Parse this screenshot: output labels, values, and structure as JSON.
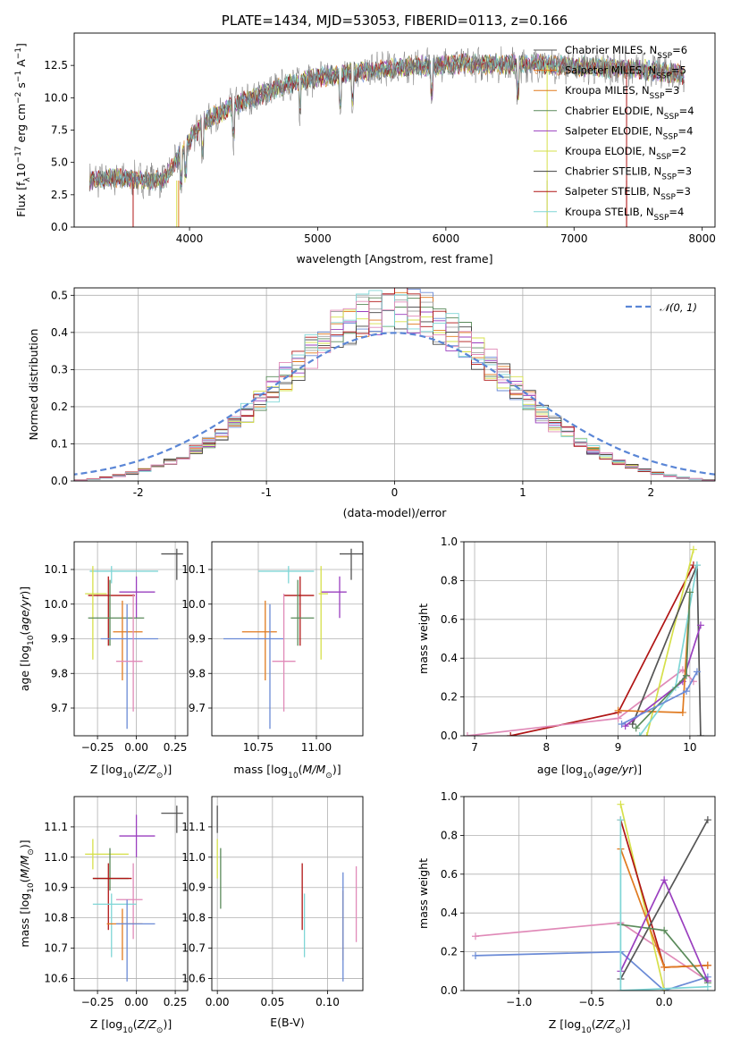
{
  "colors": [
    "#555555",
    "#e07a1f",
    "#a3a3a3",
    "#5a8a5a",
    "#9a3fbf",
    "#d6e04a",
    "#404040",
    "#b01515",
    "#7fd6d6",
    "#6a8ad6",
    "#e08ab8"
  ],
  "chart_data": [
    {
      "id": "spectrum",
      "type": "line",
      "title": "PLATE=1434, MJD=53053, FIBERID=0113, z=0.166",
      "xlabel": "wavelength [Angstrom, rest frame]",
      "ylabel": "Flux [f_λ 10^-17 erg cm^-2 s^-1 A^-1]",
      "xlim": [
        3100,
        8100
      ],
      "ylim": [
        0,
        15
      ],
      "xticks": [
        4000,
        5000,
        6000,
        7000,
        8000
      ],
      "yticks": [
        0.0,
        2.5,
        5.0,
        7.5,
        10.0,
        12.5
      ],
      "grid": false,
      "legend_placement": "top-right",
      "series": [
        {
          "name": "Chabrier MILES, N_SSP=6"
        },
        {
          "name": "Salpeter MILES, N_SSP=5"
        },
        {
          "name": "Kroupa MILES, N_SSP=3"
        },
        {
          "name": "Chabrier ELODIE, N_SSP=4"
        },
        {
          "name": "Salpeter ELODIE, N_SSP=4"
        },
        {
          "name": "Kroupa ELODIE, N_SSP=2"
        },
        {
          "name": "Chabrier STELIB, N_SSP=3"
        },
        {
          "name": "Salpeter STELIB, N_SSP=3"
        },
        {
          "name": "Kroupa STELIB, N_SSP=4"
        }
      ],
      "continuum": {
        "x": [
          3220,
          3400,
          3600,
          3800,
          3950,
          4100,
          4300,
          4500,
          4700,
          4900,
          5100,
          5300,
          5500,
          5700,
          5900,
          6100,
          6300,
          6500,
          6700,
          6900,
          7100,
          7300,
          7500,
          7700,
          7850
        ],
        "y": [
          3.6,
          3.8,
          3.7,
          3.6,
          6.0,
          8.0,
          9.2,
          10.0,
          10.8,
          11.4,
          11.7,
          12.0,
          12.2,
          12.4,
          12.5,
          12.6,
          12.6,
          12.6,
          12.6,
          12.5,
          12.4,
          12.3,
          12.2,
          12.0,
          11.8
        ]
      }
    },
    {
      "id": "residuals",
      "type": "line",
      "xlabel": "(data-model)/error",
      "ylabel": "Normed distribution",
      "xlim": [
        -2.5,
        2.5
      ],
      "ylim": [
        0,
        0.52
      ],
      "xticks": [
        -2,
        -1,
        0,
        1,
        2
      ],
      "yticks": [
        0.0,
        0.1,
        0.2,
        0.3,
        0.4,
        0.5
      ],
      "grid": true,
      "legend_placement": "top-right",
      "reference": {
        "name": "N(0,1)",
        "mu": 0,
        "sigma": 1
      },
      "bin_width": 0.1
    },
    {
      "id": "age-vs-Z",
      "type": "scatter",
      "xlabel": "Z [log10(Z/Z☉)]",
      "ylabel": "age  [log10(age/yr)]",
      "xlim": [
        -0.4,
        0.33
      ],
      "ylim": [
        9.62,
        10.18
      ],
      "xticks": [
        -0.25,
        0.0,
        0.25
      ],
      "xtick_labels": [
        "−0.25",
        "0.00",
        "0.25"
      ],
      "yticks": [
        9.7,
        9.8,
        9.9,
        10.0,
        10.1
      ],
      "grid": true,
      "points": [
        {
          "c": 0,
          "x": 0.26,
          "y": 10.145,
          "xerr": [
            0.26,
            0.26
          ],
          "xr": [
            0.16,
            0.3
          ],
          "yr": [
            10.07,
            10.16
          ]
        },
        {
          "c": 8,
          "x": -0.16,
          "y": 10.095,
          "xr": [
            -0.3,
            0.14
          ],
          "yr": [
            10.06,
            10.11
          ]
        },
        {
          "c": 4,
          "x": 0.0,
          "y": 10.035,
          "xr": [
            -0.11,
            0.12
          ],
          "yr": [
            9.96,
            10.08
          ]
        },
        {
          "c": 7,
          "x": -0.18,
          "y": 10.025,
          "xr": [
            -0.31,
            -0.01
          ],
          "yr": [
            9.88,
            10.08
          ]
        },
        {
          "c": 5,
          "x": -0.28,
          "y": 10.03,
          "xr": [
            -0.33,
            -0.19
          ],
          "yr": [
            9.84,
            10.11
          ]
        },
        {
          "c": 3,
          "x": -0.17,
          "y": 9.96,
          "xr": [
            -0.31,
            0.05
          ],
          "yr": [
            9.88,
            10.07
          ]
        },
        {
          "c": 1,
          "x": -0.09,
          "y": 9.92,
          "xr": [
            -0.15,
            0.04
          ],
          "yr": [
            9.78,
            10.01
          ]
        },
        {
          "c": 9,
          "x": -0.06,
          "y": 9.9,
          "xr": [
            -0.23,
            0.14
          ],
          "yr": [
            9.64,
            10.0
          ]
        },
        {
          "c": 10,
          "x": -0.02,
          "y": 9.835,
          "xr": [
            -0.13,
            0.04
          ],
          "yr": [
            9.69,
            10.03
          ]
        }
      ]
    },
    {
      "id": "age-vs-mass",
      "type": "scatter",
      "xlabel": "mass [log10(M/M☉)]",
      "ylabel": "",
      "xlim": [
        10.55,
        11.2
      ],
      "ylim": [
        9.62,
        10.18
      ],
      "xticks": [
        10.75,
        11.0
      ],
      "xtick_labels": [
        "10.75",
        "11.00"
      ],
      "yticks": [
        9.7,
        9.8,
        9.9,
        10.0,
        10.1
      ],
      "grid": true,
      "points": [
        {
          "c": 0,
          "x": 11.15,
          "y": 10.145,
          "xr": [
            11.1,
            11.2
          ],
          "yr": [
            10.07,
            10.16
          ]
        },
        {
          "c": 8,
          "x": 10.88,
          "y": 10.095,
          "xr": [
            10.75,
            10.99
          ],
          "yr": [
            10.06,
            10.11
          ]
        },
        {
          "c": 4,
          "x": 11.1,
          "y": 10.035,
          "xr": [
            11.02,
            11.13
          ],
          "yr": [
            9.96,
            10.08
          ]
        },
        {
          "c": 7,
          "x": 10.93,
          "y": 10.025,
          "xr": [
            10.86,
            10.99
          ],
          "yr": [
            9.88,
            10.08
          ]
        },
        {
          "c": 5,
          "x": 11.02,
          "y": 10.03,
          "xr": [
            11.01,
            11.05
          ],
          "yr": [
            9.84,
            10.11
          ]
        },
        {
          "c": 3,
          "x": 10.92,
          "y": 9.96,
          "xr": [
            10.89,
            10.99
          ],
          "yr": [
            9.88,
            10.07
          ]
        },
        {
          "c": 1,
          "x": 10.78,
          "y": 9.92,
          "xr": [
            10.68,
            10.83
          ],
          "yr": [
            9.78,
            10.01
          ]
        },
        {
          "c": 9,
          "x": 10.8,
          "y": 9.9,
          "xr": [
            10.6,
            10.86
          ],
          "yr": [
            9.64,
            10.0
          ]
        },
        {
          "c": 10,
          "x": 10.86,
          "y": 9.835,
          "xr": [
            10.81,
            10.91
          ],
          "yr": [
            9.69,
            10.03
          ]
        }
      ]
    },
    {
      "id": "weight-vs-age",
      "type": "line",
      "xlabel": "age  [log10(age/yr)]",
      "ylabel": "mass weight",
      "xlim": [
        6.85,
        10.35
      ],
      "ylim": [
        0,
        1.0
      ],
      "xticks": [
        7,
        8,
        9,
        10
      ],
      "yticks": [
        0.0,
        0.2,
        0.4,
        0.6,
        0.8,
        1.0
      ],
      "grid": true,
      "series": [
        {
          "c": 7,
          "points": [
            [
              7.5,
              0.0
            ],
            [
              9.0,
              0.12
            ],
            [
              10.05,
              0.88
            ]
          ]
        },
        {
          "c": 10,
          "points": [
            [
              6.9,
              0.0
            ],
            [
              9.0,
              0.09
            ],
            [
              9.9,
              0.34
            ],
            [
              10.05,
              0.28
            ]
          ]
        },
        {
          "c": 5,
          "points": [
            [
              9.4,
              0.0
            ],
            [
              10.05,
              0.96
            ]
          ]
        },
        {
          "c": 0,
          "points": [
            [
              9.2,
              0.06
            ],
            [
              10.1,
              0.88
            ],
            [
              10.15,
              0.0
            ]
          ]
        },
        {
          "c": 4,
          "points": [
            [
              9.1,
              0.05
            ],
            [
              9.9,
              0.28
            ],
            [
              10.15,
              0.57
            ]
          ]
        },
        {
          "c": 1,
          "points": [
            [
              9.0,
              0.13
            ],
            [
              9.9,
              0.12
            ],
            [
              10.0,
              0.74
            ]
          ]
        },
        {
          "c": 8,
          "points": [
            [
              9.3,
              0.0
            ],
            [
              9.8,
              0.25
            ],
            [
              10.1,
              0.88
            ]
          ]
        },
        {
          "c": 3,
          "points": [
            [
              9.25,
              0.04
            ],
            [
              9.95,
              0.31
            ],
            [
              10.0,
              0.74
            ]
          ]
        },
        {
          "c": 9,
          "points": [
            [
              9.05,
              0.06
            ],
            [
              9.95,
              0.23
            ],
            [
              10.1,
              0.33
            ]
          ]
        }
      ]
    },
    {
      "id": "mass-vs-Z",
      "type": "scatter",
      "xlabel": "Z [log10(Z/Z☉)]",
      "ylabel": "mass [log10(M/M☉)]",
      "xlim": [
        -0.4,
        0.33
      ],
      "ylim": [
        10.56,
        11.2
      ],
      "xticks": [
        -0.25,
        0.0,
        0.25
      ],
      "xtick_labels": [
        "−0.25",
        "0.00",
        "0.25"
      ],
      "yticks": [
        10.6,
        10.7,
        10.8,
        10.9,
        11.0,
        11.1
      ],
      "grid": true,
      "points": [
        {
          "c": 0,
          "x": 0.26,
          "y": 11.145,
          "xr": [
            0.16,
            0.3
          ],
          "yr": [
            11.08,
            11.17
          ]
        },
        {
          "c": 4,
          "x": 0.0,
          "y": 11.07,
          "xr": [
            -0.11,
            0.12
          ],
          "yr": [
            11.0,
            11.14
          ]
        },
        {
          "c": 5,
          "x": -0.28,
          "y": 11.01,
          "xr": [
            -0.33,
            -0.05
          ],
          "yr": [
            10.96,
            11.06
          ]
        },
        {
          "c": 3,
          "x": -0.17,
          "y": 10.93,
          "xr": [
            -0.28,
            -0.05
          ],
          "yr": [
            10.89,
            11.03
          ]
        },
        {
          "c": 7,
          "x": -0.18,
          "y": 10.93,
          "xr": [
            -0.28,
            -0.03
          ],
          "yr": [
            10.76,
            10.98
          ]
        },
        {
          "c": 10,
          "x": -0.02,
          "y": 10.86,
          "xr": [
            -0.13,
            0.04
          ],
          "yr": [
            10.73,
            10.98
          ]
        },
        {
          "c": 8,
          "x": -0.16,
          "y": 10.845,
          "xr": [
            -0.28,
            0.0
          ],
          "yr": [
            10.67,
            10.88
          ]
        },
        {
          "c": 1,
          "x": -0.09,
          "y": 10.78,
          "xr": [
            -0.19,
            0.04
          ],
          "yr": [
            10.66,
            10.83
          ]
        },
        {
          "c": 9,
          "x": -0.06,
          "y": 10.78,
          "xr": [
            -0.13,
            0.12
          ],
          "yr": [
            10.59,
            10.86
          ]
        }
      ]
    },
    {
      "id": "mass-vs-EBV",
      "type": "scatter",
      "xlabel": "E(B-V)",
      "ylabel": "",
      "xlim": [
        -0.005,
        0.132
      ],
      "ylim": [
        10.56,
        11.2
      ],
      "xticks": [
        0.0,
        0.05,
        0.1
      ],
      "xtick_labels": [
        "0.00",
        "0.05",
        "0.10"
      ],
      "yticks": [
        10.6,
        10.7,
        10.8,
        10.9,
        11.0,
        11.1
      ],
      "grid": true,
      "points": [
        {
          "c": 0,
          "x": 0.0,
          "y": 11.145,
          "xr": [
            0.0,
            0.0
          ],
          "yr": [
            11.08,
            11.17
          ]
        },
        {
          "c": 5,
          "x": 0.0,
          "y": 11.01,
          "xr": [
            0.0,
            0.0
          ],
          "yr": [
            10.93,
            11.06
          ]
        },
        {
          "c": 3,
          "x": 0.003,
          "y": 10.93,
          "xr": [
            0.003,
            0.003
          ],
          "yr": [
            10.83,
            11.03
          ]
        },
        {
          "c": 7,
          "x": 0.077,
          "y": 10.93,
          "xr": [
            0.077,
            0.077
          ],
          "yr": [
            10.76,
            10.98
          ]
        },
        {
          "c": 8,
          "x": 0.079,
          "y": 10.845,
          "xr": [
            0.079,
            0.079
          ],
          "yr": [
            10.67,
            10.88
          ]
        },
        {
          "c": 1,
          "x": 0.114,
          "y": 10.78,
          "xr": [
            0.114,
            0.114
          ],
          "yr": [
            10.66,
            10.89
          ]
        },
        {
          "c": 9,
          "x": 0.114,
          "y": 10.8,
          "xr": [
            0.114,
            0.114
          ],
          "yr": [
            10.59,
            10.95
          ]
        },
        {
          "c": 10,
          "x": 0.126,
          "y": 10.86,
          "xr": [
            0.126,
            0.126
          ],
          "yr": [
            10.72,
            10.97
          ]
        }
      ]
    },
    {
      "id": "weight-vs-Z",
      "type": "line",
      "xlabel": "Z [log10(Z/Z☉)]",
      "ylabel": "mass weight",
      "xlim": [
        -1.38,
        0.35
      ],
      "ylim": [
        0,
        1.0
      ],
      "xticks": [
        -1.0,
        -0.5,
        0.0
      ],
      "xtick_labels": [
        "−1.0",
        "−0.5",
        "0.0"
      ],
      "yticks": [
        0.0,
        0.2,
        0.4,
        0.6,
        0.8,
        1.0
      ],
      "grid": true,
      "series": [
        {
          "c": 10,
          "points": [
            [
              -1.3,
              0.28
            ],
            [
              -0.3,
              0.35
            ],
            [
              0.3,
              0.05
            ]
          ]
        },
        {
          "c": 9,
          "points": [
            [
              -1.3,
              0.18
            ],
            [
              -0.3,
              0.2
            ],
            [
              0.0,
              0.0
            ],
            [
              0.3,
              0.07
            ]
          ]
        },
        {
          "c": 5,
          "points": [
            [
              -0.3,
              0.96
            ],
            [
              0.0,
              0.0
            ]
          ]
        },
        {
          "c": 7,
          "points": [
            [
              -0.3,
              0.88
            ],
            [
              0.0,
              0.12
            ],
            [
              0.3,
              0.13
            ]
          ]
        },
        {
          "c": 1,
          "points": [
            [
              -0.3,
              0.73
            ],
            [
              0.0,
              0.12
            ],
            [
              0.3,
              0.13
            ]
          ]
        },
        {
          "c": 0,
          "points": [
            [
              -0.3,
              0.06
            ],
            [
              0.3,
              0.88
            ]
          ]
        },
        {
          "c": 3,
          "points": [
            [
              -0.3,
              0.34
            ],
            [
              0.0,
              0.31
            ],
            [
              0.3,
              0.04
            ]
          ]
        },
        {
          "c": 4,
          "points": [
            [
              -0.3,
              0.1
            ],
            [
              0.0,
              0.57
            ],
            [
              0.3,
              0.05
            ]
          ]
        },
        {
          "c": 8,
          "points": [
            [
              -0.3,
              0.88
            ],
            [
              -0.3,
              0.0
            ],
            [
              0.3,
              0.02
            ]
          ]
        }
      ]
    }
  ]
}
